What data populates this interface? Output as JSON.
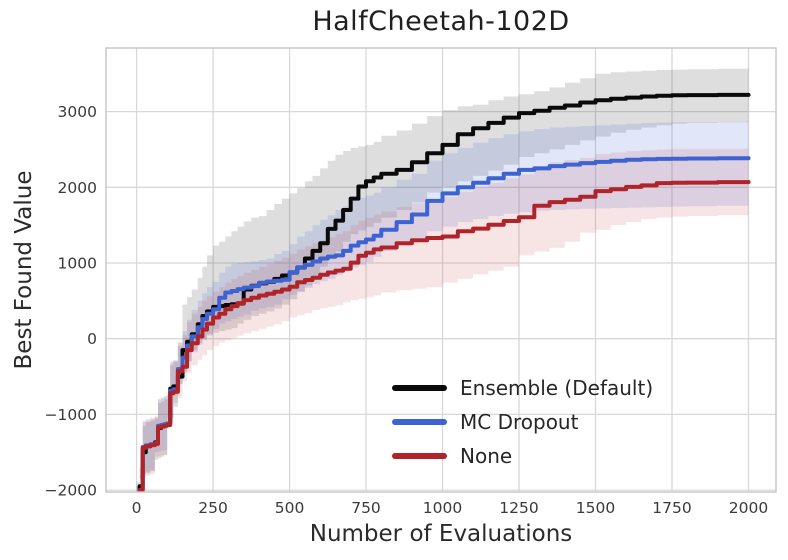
{
  "figure": {
    "title": "HalfCheetah-102D",
    "xlabel": "Number of Evaluations",
    "ylabel": "Best Found Value"
  },
  "colors": {
    "grid": "#d8d8d8",
    "spine": "#c8c8c8",
    "tick_text": "#3a3a3a",
    "ensemble_line": "#0a0a0a",
    "mc_dropout_line": "#3d63d2",
    "none_line": "#b02329"
  },
  "chart_data": {
    "type": "line",
    "title": "HalfCheetah-102D",
    "xlabel": "Number of Evaluations",
    "ylabel": "Best Found Value",
    "xlim": [
      -100,
      2090
    ],
    "ylim": [
      -2025,
      3840
    ],
    "x_ticks": [
      0,
      250,
      500,
      750,
      1000,
      1250,
      1500,
      1750,
      2000
    ],
    "y_ticks": [
      -2000,
      -1000,
      0,
      1000,
      2000,
      3000
    ],
    "grid": true,
    "legend_position": "lower right",
    "line_style": "step",
    "x": [
      0,
      10,
      20,
      30,
      45,
      60,
      70,
      80,
      90,
      100,
      110,
      120,
      135,
      150,
      165,
      180,
      200,
      215,
      230,
      250,
      270,
      290,
      310,
      330,
      350,
      375,
      400,
      425,
      450,
      475,
      500,
      525,
      550,
      575,
      600,
      625,
      650,
      675,
      700,
      725,
      750,
      775,
      800,
      850,
      900,
      950,
      1000,
      1050,
      1100,
      1150,
      1200,
      1250,
      1300,
      1350,
      1400,
      1450,
      1500,
      1550,
      1600,
      1650,
      1700,
      1750,
      1800,
      1900,
      2000
    ],
    "series": [
      {
        "name": "Ensemble (Default)",
        "color": "#0a0a0a",
        "band_fill": "rgba(70,70,70,0.18)",
        "y": [
          -2100,
          -1950,
          -1500,
          -1420,
          -1400,
          -1370,
          -1180,
          -1160,
          -1140,
          -1120,
          -660,
          -630,
          -500,
          -150,
          -40,
          60,
          190,
          300,
          360,
          420,
          430,
          445,
          455,
          465,
          650,
          700,
          730,
          750,
          790,
          835,
          875,
          940,
          1060,
          1160,
          1260,
          1450,
          1560,
          1700,
          1850,
          2010,
          2080,
          2130,
          2180,
          2230,
          2330,
          2450,
          2560,
          2700,
          2780,
          2850,
          2920,
          2980,
          3010,
          3050,
          3080,
          3120,
          3150,
          3170,
          3185,
          3200,
          3210,
          3215,
          3218,
          3220,
          3220
        ],
        "upper": [
          -1900,
          -1700,
          -1150,
          -1100,
          -1080,
          -1050,
          -850,
          -830,
          -800,
          -780,
          -350,
          -300,
          -100,
          450,
          550,
          650,
          800,
          950,
          1100,
          1230,
          1280,
          1350,
          1420,
          1480,
          1550,
          1600,
          1620,
          1700,
          1780,
          1850,
          1920,
          1990,
          2080,
          2150,
          2250,
          2350,
          2430,
          2480,
          2520,
          2540,
          2560,
          2600,
          2680,
          2750,
          2840,
          2940,
          3020,
          3070,
          3090,
          3150,
          3200,
          3230,
          3270,
          3320,
          3380,
          3440,
          3500,
          3520,
          3530,
          3540,
          3550,
          3555,
          3560,
          3565,
          3570
        ],
        "lower": [
          -2150,
          -2100,
          -1850,
          -1800,
          -1780,
          -1750,
          -1600,
          -1580,
          -1560,
          -1540,
          -1100,
          -1050,
          -900,
          -600,
          -450,
          -300,
          -150,
          -60,
          0,
          60,
          80,
          100,
          120,
          140,
          200,
          250,
          300,
          330,
          360,
          400,
          450,
          520,
          620,
          700,
          800,
          950,
          1050,
          1150,
          1280,
          1380,
          1430,
          1480,
          1530,
          1600,
          1700,
          1800,
          1930,
          2000,
          2080,
          2150,
          2220,
          2300,
          2400,
          2450,
          2500,
          2560,
          2620,
          2670,
          2720,
          2760,
          2790,
          2820,
          2840,
          2850,
          2860
        ]
      },
      {
        "name": "MC Dropout",
        "color": "#3d63d2",
        "band_fill": "rgba(80,110,220,0.17)",
        "y": [
          -2150,
          -2000,
          -1430,
          -1410,
          -1395,
          -1380,
          -1150,
          -1140,
          -1130,
          -1120,
          -690,
          -670,
          -400,
          -250,
          -90,
          30,
          150,
          260,
          330,
          390,
          540,
          610,
          630,
          655,
          675,
          695,
          740,
          755,
          765,
          780,
          880,
          945,
          975,
          1020,
          1060,
          1085,
          1100,
          1160,
          1230,
          1275,
          1310,
          1360,
          1440,
          1540,
          1640,
          1820,
          1920,
          2000,
          2060,
          2120,
          2180,
          2230,
          2250,
          2280,
          2300,
          2320,
          2335,
          2350,
          2365,
          2370,
          2375,
          2378,
          2380,
          2383,
          2385
        ],
        "upper": [
          -1950,
          -1800,
          -1100,
          -1080,
          -1060,
          -1040,
          -800,
          -780,
          -760,
          -740,
          -300,
          -280,
          -50,
          100,
          250,
          380,
          500,
          600,
          680,
          750,
          870,
          950,
          990,
          1000,
          1010,
          1020,
          1040,
          1060,
          1120,
          1160,
          1250,
          1350,
          1420,
          1500,
          1570,
          1630,
          1700,
          1750,
          1820,
          1860,
          1890,
          1930,
          2000,
          2100,
          2180,
          2350,
          2450,
          2520,
          2590,
          2650,
          2700,
          2740,
          2770,
          2790,
          2800,
          2810,
          2820,
          2830,
          2840,
          2850,
          2855,
          2858,
          2860,
          2865,
          2870
        ],
        "lower": [
          -2200,
          -2150,
          -1800,
          -1780,
          -1760,
          -1740,
          -1500,
          -1490,
          -1480,
          -1470,
          -1050,
          -1030,
          -750,
          -600,
          -430,
          -300,
          -180,
          -80,
          -20,
          40,
          130,
          200,
          230,
          260,
          290,
          320,
          370,
          400,
          420,
          450,
          520,
          580,
          620,
          670,
          720,
          760,
          790,
          840,
          900,
          940,
          970,
          1010,
          1080,
          1160,
          1240,
          1330,
          1420,
          1480,
          1540,
          1580,
          1620,
          1650,
          1670,
          1690,
          1700,
          1710,
          1715,
          1720,
          1725,
          1730,
          1735,
          1740,
          1745,
          1750,
          1755
        ]
      },
      {
        "name": "None",
        "color": "#b02329",
        "band_fill": "rgba(190,55,60,0.13)",
        "y": [
          -2150,
          -2000,
          -1440,
          -1420,
          -1405,
          -1390,
          -1170,
          -1160,
          -1150,
          -1140,
          -720,
          -700,
          -430,
          -370,
          -150,
          -60,
          30,
          120,
          200,
          280,
          330,
          390,
          430,
          470,
          510,
          540,
          570,
          595,
          620,
          650,
          685,
          745,
          775,
          805,
          845,
          875,
          900,
          925,
          1005,
          1095,
          1135,
          1180,
          1205,
          1260,
          1300,
          1330,
          1350,
          1420,
          1455,
          1505,
          1555,
          1605,
          1755,
          1805,
          1835,
          1875,
          1950,
          1975,
          2005,
          2025,
          2055,
          2060,
          2062,
          2068,
          2070
        ],
        "upper": [
          -1950,
          -1800,
          -1080,
          -1060,
          -1040,
          -1020,
          -800,
          -780,
          -760,
          -740,
          -320,
          -300,
          -50,
          50,
          220,
          330,
          420,
          500,
          560,
          620,
          680,
          740,
          790,
          830,
          870,
          910,
          950,
          990,
          1030,
          1070,
          1120,
          1180,
          1220,
          1260,
          1300,
          1340,
          1380,
          1420,
          1500,
          1560,
          1600,
          1640,
          1680,
          1740,
          1790,
          1830,
          1870,
          1940,
          2000,
          2060,
          2120,
          2170,
          2280,
          2330,
          2360,
          2390,
          2440,
          2460,
          2480,
          2490,
          2500,
          2505,
          2508,
          2510,
          2510
        ],
        "lower": [
          -2250,
          -2200,
          -1850,
          -1830,
          -1810,
          -1790,
          -1560,
          -1550,
          -1540,
          -1530,
          -1120,
          -1100,
          -850,
          -780,
          -560,
          -450,
          -350,
          -280,
          -220,
          -150,
          -100,
          -50,
          -20,
          10,
          40,
          70,
          100,
          130,
          160,
          190,
          230,
          280,
          310,
          340,
          380,
          400,
          420,
          440,
          480,
          510,
          530,
          550,
          570,
          610,
          640,
          660,
          680,
          740,
          790,
          850,
          900,
          950,
          1100,
          1150,
          1200,
          1280,
          1400,
          1440,
          1500,
          1540,
          1580,
          1600,
          1610,
          1620,
          1630
        ]
      }
    ]
  }
}
